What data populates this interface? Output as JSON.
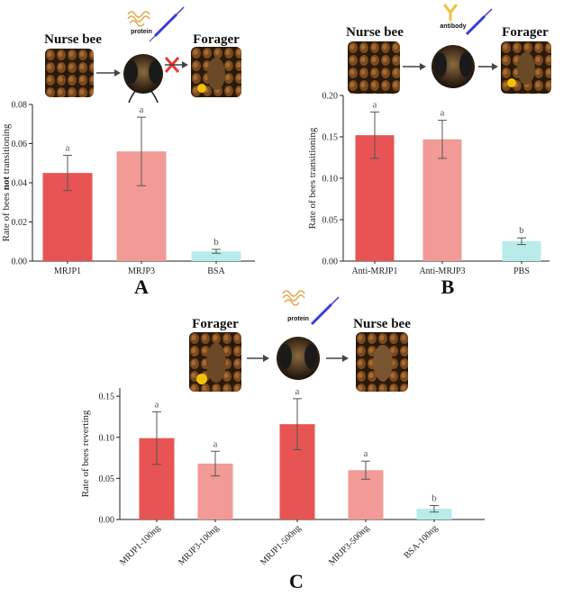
{
  "panels": {
    "A": {
      "letter": "A",
      "stages": [
        "Nurse bee",
        "Forager"
      ],
      "agent": "protein",
      "blocked": true
    },
    "B": {
      "letter": "B",
      "stages": [
        "Nurse bee",
        "Forager"
      ],
      "agent": "antibody",
      "blocked": false
    },
    "C": {
      "letter": "C",
      "stages": [
        "Forager",
        "Nurse bee"
      ],
      "agent": "protein",
      "blocked": false
    }
  },
  "colors": {
    "dark_red": "#e85454",
    "light_red": "#f29a96",
    "cyan": "#b7ecea",
    "arrow": "#444444",
    "cross": "#e53935",
    "syringe": "#3a3ad6",
    "protein": "#e8a040",
    "antibody": "#f0c040"
  },
  "chart_data": [
    {
      "type": "bar",
      "panel": "A",
      "categories": [
        "MRJP1",
        "MRJP3",
        "BSA"
      ],
      "values": [
        0.045,
        0.056,
        0.005
      ],
      "errors": [
        0.009,
        0.0175,
        0.001
      ],
      "significance": [
        "a",
        "a",
        "b"
      ],
      "bar_colors": [
        "#e85454",
        "#f29a96",
        "#b7ecea"
      ],
      "ylabel_parts": [
        "Rate of bees ",
        "not",
        " transitioning"
      ],
      "ylim": [
        0,
        0.08
      ],
      "yticks": [
        0.0,
        0.02,
        0.04,
        0.06,
        0.08
      ],
      "ytick_labels": [
        "0.00",
        "0.02",
        "0.04",
        "0.06",
        "0.08"
      ]
    },
    {
      "type": "bar",
      "panel": "B",
      "categories": [
        "Anti-MRJP1",
        "Anti-MRJP3",
        "PBS"
      ],
      "values": [
        0.152,
        0.147,
        0.024
      ],
      "errors": [
        0.028,
        0.023,
        0.004
      ],
      "significance": [
        "a",
        "a",
        "b"
      ],
      "bar_colors": [
        "#e85454",
        "#f29a96",
        "#b7ecea"
      ],
      "ylabel_parts": [
        "Rate of bees transitioning"
      ],
      "ylim": [
        0,
        0.2
      ],
      "yticks": [
        0.0,
        0.05,
        0.1,
        0.15,
        0.2
      ],
      "ytick_labels": [
        "0.00",
        "0.05",
        "0.10",
        "0.15",
        "0.20"
      ]
    },
    {
      "type": "bar",
      "panel": "C",
      "categories": [
        "MRJP1-100ng",
        "MRJP3-100ng",
        "MRJP1-500ng",
        "MRJP3-500ng",
        "BSA-100ng"
      ],
      "values": [
        0.099,
        0.068,
        0.116,
        0.06,
        0.013
      ],
      "errors": [
        0.032,
        0.015,
        0.031,
        0.011,
        0.004
      ],
      "significance": [
        "a",
        "a",
        "a",
        "a",
        "b"
      ],
      "bar_colors": [
        "#e85454",
        "#f29a96",
        "#e85454",
        "#f29a96",
        "#b7ecea"
      ],
      "ylabel_parts": [
        "Rate of bees reverting"
      ],
      "ylim": [
        0,
        0.16
      ],
      "yticks": [
        0.0,
        0.05,
        0.1,
        0.15
      ],
      "ytick_labels": [
        "0.00",
        "0.05",
        "0.10",
        "0.15"
      ]
    }
  ]
}
